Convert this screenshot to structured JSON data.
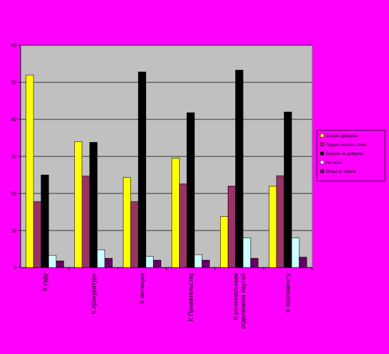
{
  "chart_data": {
    "type": "bar",
    "categories": [
      "К суду",
      "К прокуратуре",
      "К милиции",
      "К Правительству",
      "К региональным отделениям партий",
      "К парламенту"
    ],
    "series": [
      {
        "name": "Скорее доверяю",
        "values": [
          52,
          34,
          24.3,
          29.5,
          13.8,
          22
        ],
        "color": "#FFFF00"
      },
      {
        "name": "Трудно сказать точно",
        "values": [
          17.8,
          24.7,
          17.8,
          22.6,
          22,
          24.8
        ],
        "color": "#993366"
      },
      {
        "name": "Скорее не доверяю",
        "values": [
          25,
          33.8,
          52.8,
          41.8,
          53.3,
          42
        ],
        "color": "#000000"
      },
      {
        "name": "Не знаю",
        "values": [
          3.3,
          4.8,
          3,
          3.5,
          8,
          8
        ],
        "color": "#CCFFFF"
      },
      {
        "name": "Отказ от ответа",
        "values": [
          1.8,
          2.5,
          2,
          2,
          2.5,
          2.8
        ],
        "color": "#660066"
      }
    ],
    "ylim": [
      0,
      60
    ],
    "yticks": [
      0,
      10,
      20,
      30,
      40,
      50,
      60
    ],
    "plot_background": "#C0C0C0",
    "grid": true,
    "legend_position": "right"
  }
}
